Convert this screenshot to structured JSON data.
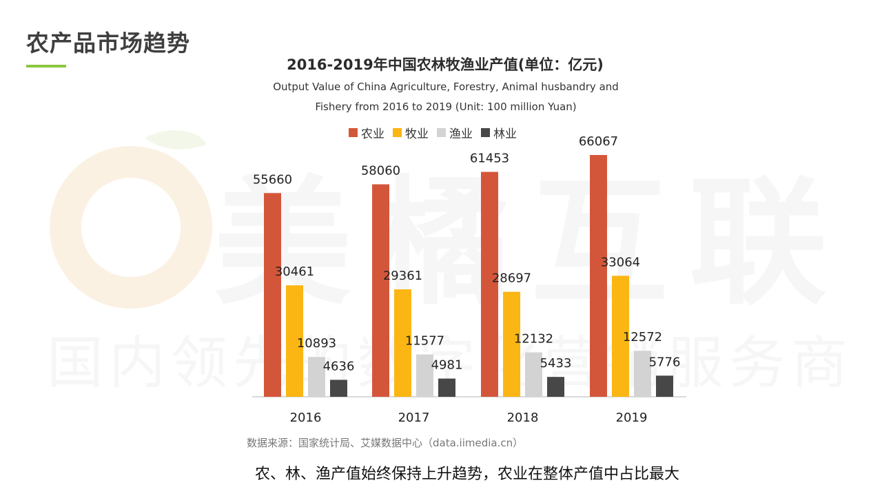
{
  "page": {
    "title": "农产品市场趋势",
    "watermark_brand": "美橘互联",
    "watermark_slogan": "国内领先的数字化营销服务商",
    "conclusion": "农、林、渔产值始终保持上升趋势，农业在整体产值中占比最大",
    "accent_color": "#8cc63f"
  },
  "chart_data": {
    "type": "bar",
    "title": "2016-2019年中国农林牧渔业产值(单位：亿元)",
    "subtitle_line1": "Output Value of China Agriculture, Forestry, Animal husbandry and",
    "subtitle_line2": "Fishery from 2016 to 2019 (Unit: 100 million Yuan)",
    "categories": [
      "2016",
      "2017",
      "2018",
      "2019"
    ],
    "series": [
      {
        "name": "农业",
        "color": "#d4563a",
        "values": [
          55660,
          58060,
          61453,
          66067
        ]
      },
      {
        "name": "牧业",
        "color": "#fbb614",
        "values": [
          30461,
          29361,
          28697,
          33064
        ]
      },
      {
        "name": "渔业",
        "color": "#d3d3d3",
        "values": [
          10893,
          11577,
          12132,
          12572
        ]
      },
      {
        "name": "林业",
        "color": "#474747",
        "values": [
          4636,
          4981,
          5433,
          5776
        ]
      }
    ],
    "ylim": [
      0,
      70000
    ],
    "grid": false,
    "legend_position": "top-center",
    "source": "数据来源：国家统计局、艾媒数据中心（data.iimedia.cn）"
  }
}
